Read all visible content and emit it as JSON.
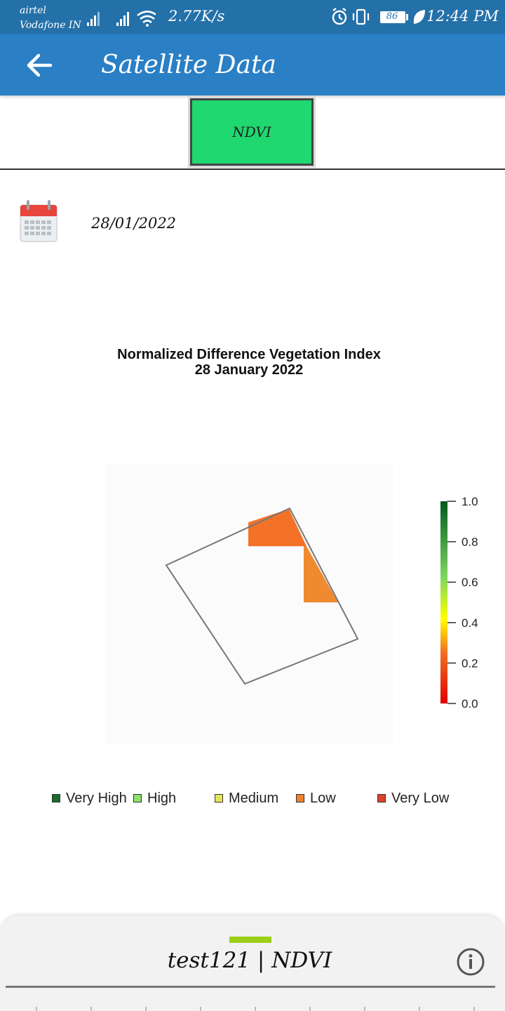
{
  "status_bar": {
    "carrier_1": "airtel",
    "carrier_2": "Vodafone IN",
    "net_speed": "2.77K/s",
    "battery": "86",
    "time": "12:44 PM",
    "icons": [
      "signal-icon",
      "wifi-icon",
      "alarm-icon",
      "vibrate-icon",
      "battery-icon",
      "leaf-icon"
    ]
  },
  "app_bar": {
    "title": "Satellite Data",
    "back_icon": "arrow-left-icon",
    "background": "#2a7fc5"
  },
  "tabs": [
    {
      "label": "NDVI",
      "selected": true,
      "color": "#1fd870"
    }
  ],
  "date": {
    "icon": "calendar-icon",
    "value": "28/01/2022"
  },
  "chart_data": {
    "type": "heatmap",
    "title": "Normalized Difference Vegetation Index",
    "subtitle": "28 January 2022",
    "colorbar": {
      "ticks": [
        "1.0",
        "0.8",
        "0.6",
        "0.4",
        "0.2",
        "0.0"
      ],
      "range": [
        0.0,
        1.0
      ],
      "colors": [
        "#e00000",
        "#f07020",
        "#ffff00",
        "#7fd860",
        "#005a1e"
      ]
    },
    "legend": [
      {
        "label": "Very High",
        "color": "#1a6b2e"
      },
      {
        "label": "High",
        "color": "#8fe06a"
      },
      {
        "label": "Medium",
        "color": "#e4e45a"
      },
      {
        "label": "Low",
        "color": "#f08030"
      },
      {
        "label": "Very Low",
        "color": "#d9432b"
      }
    ],
    "cell_colors": [
      "#f47228",
      "#f08a30"
    ],
    "legend_position": "bottom"
  },
  "bottom_sheet": {
    "title": "test121  |  NDVI",
    "info_icon": "info-icon",
    "handle_color": "#9ccf1a"
  }
}
